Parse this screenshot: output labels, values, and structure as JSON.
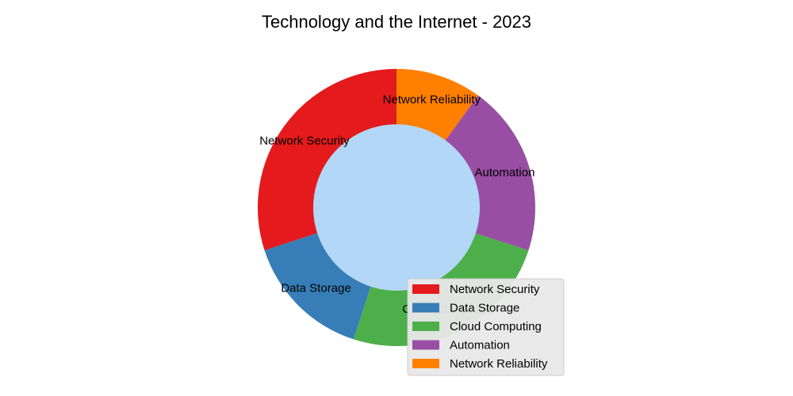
{
  "chart_data": {
    "type": "pie",
    "title": "Technology and the Internet - 2023",
    "donut": true,
    "center_color": "#b3d7f7",
    "legend_position": "lower-right",
    "categories": [
      "Network Security",
      "Data Storage",
      "Cloud Computing",
      "Automation",
      "Network Reliability"
    ],
    "values": [
      30,
      15,
      25,
      20,
      10
    ],
    "colors": [
      "#e41a1c",
      "#377eb8",
      "#4daf4a",
      "#984ea3",
      "#ff7f00"
    ]
  }
}
